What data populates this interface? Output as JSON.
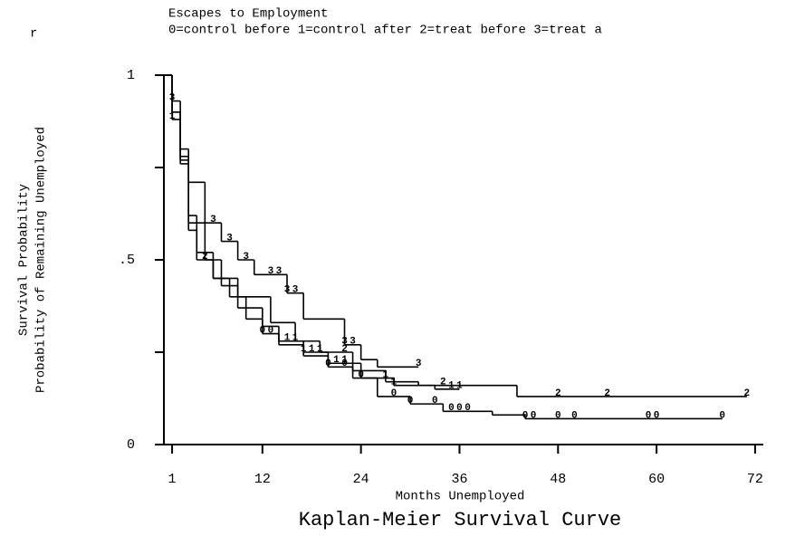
{
  "chart_data": {
    "type": "step",
    "title": "Escapes to Employment",
    "subtitle": "0=control before 1=control after 2=treat before 3=treat a",
    "corner_text": "r",
    "y_label": "Survival Probability",
    "y_label_2": "Probability of Remaining Unemployed",
    "x_label": "Months Unemployed",
    "caption": "Kaplan-Meier Survival Curve",
    "xlim": [
      0,
      73
    ],
    "ylim": [
      0,
      1
    ],
    "xticks": [
      1,
      12,
      24,
      36,
      48,
      60,
      72
    ],
    "yticks": [
      0,
      {
        "value": 0.5,
        "label": ".5"
      },
      1
    ],
    "yminorticks": [
      0.25,
      0.75
    ],
    "color": "#000000",
    "series": [
      {
        "name": "0",
        "x": [
          0,
          1,
          2,
          3,
          4,
          6,
          8,
          10,
          12,
          14,
          17,
          20,
          23,
          26,
          30,
          34,
          40,
          44
        ],
        "values": [
          1,
          0.9,
          0.78,
          0.62,
          0.52,
          0.45,
          0.4,
          0.34,
          0.3,
          0.27,
          0.24,
          0.21,
          0.18,
          0.13,
          0.11,
          0.09,
          0.08,
          0.07
        ],
        "censored": [
          12,
          13,
          20,
          22,
          24,
          28,
          30,
          33,
          35,
          36,
          37,
          44,
          45,
          48,
          50,
          59,
          60,
          68
        ]
      },
      {
        "name": "1",
        "x": [
          0,
          1,
          2,
          3,
          5,
          7,
          9,
          12,
          14,
          17,
          20,
          24,
          28,
          33
        ],
        "values": [
          1,
          0.88,
          0.76,
          0.6,
          0.5,
          0.43,
          0.37,
          0.32,
          0.28,
          0.25,
          0.22,
          0.18,
          0.16,
          0.15
        ],
        "censored": [
          1,
          15,
          16,
          17,
          18,
          19,
          21,
          22,
          27,
          28,
          35,
          36
        ]
      },
      {
        "name": "2",
        "x": [
          0,
          1,
          2,
          3,
          4,
          6,
          9,
          13,
          16,
          19,
          23,
          27,
          31,
          43
        ],
        "values": [
          1,
          0.9,
          0.77,
          0.58,
          0.5,
          0.45,
          0.4,
          0.33,
          0.28,
          0.25,
          0.2,
          0.17,
          0.16,
          0.13
        ],
        "censored": [
          5,
          22,
          34,
          48,
          54,
          71
        ]
      },
      {
        "name": "3",
        "x": [
          0,
          1,
          2,
          3,
          5,
          7,
          9,
          11,
          15,
          17,
          22,
          24,
          26
        ],
        "values": [
          1,
          0.93,
          0.8,
          0.71,
          0.6,
          0.55,
          0.5,
          0.46,
          0.41,
          0.34,
          0.27,
          0.23,
          0.21
        ],
        "censored": [
          1,
          6,
          8,
          10,
          13,
          14,
          15,
          16,
          22,
          23,
          31
        ]
      }
    ]
  }
}
